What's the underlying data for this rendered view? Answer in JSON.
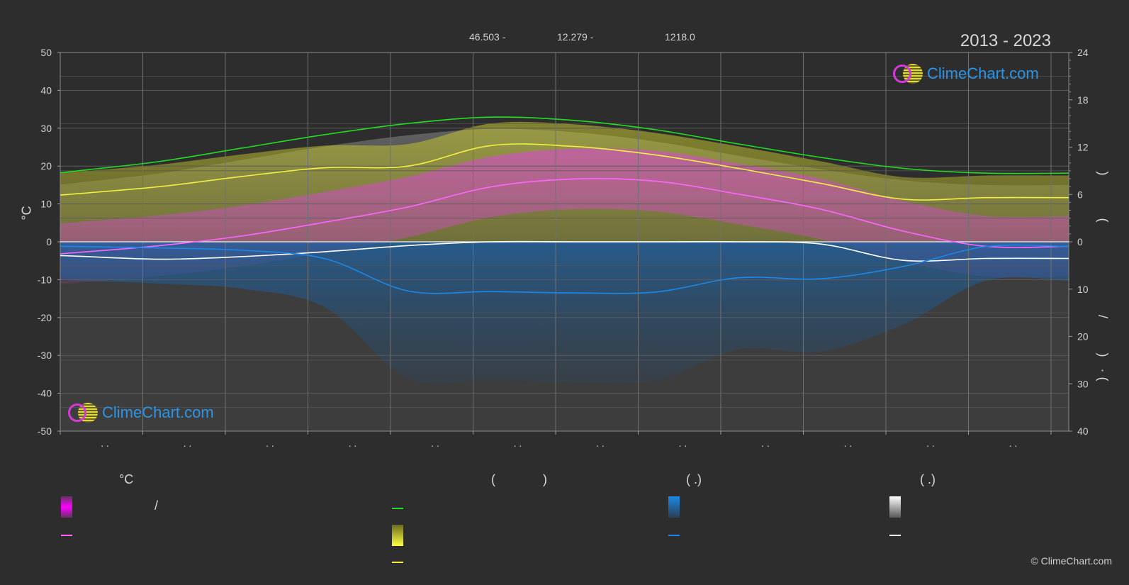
{
  "header": {
    "lat": "46.503 -",
    "lon": "12.279 -",
    "elev": "1218.0",
    "period": "2013 - 2023"
  },
  "brand": {
    "text": "ClimeChart.com"
  },
  "copyright": "© ClimeChart.com",
  "left_axis_label": "°C",
  "right_axis_glyphs": {
    "top_open": ")",
    "top_close": "(",
    "bottom_slash": "/",
    "bottom_open": ")",
    "bottom_dot": "·",
    "bottom_close": "("
  },
  "month_tick_labels": [
    ". .",
    ". .",
    ". .",
    ". .",
    ". .",
    ". .",
    ". .",
    ". .",
    ". .",
    ". .",
    ". .",
    ". ."
  ],
  "legend": {
    "col1_head": "°C",
    "col1_slash": "/",
    "col2_head_open": "(",
    "col2_head_close": ")",
    "col3_head": "(   .)",
    "col4_head": "(   .)"
  },
  "colors": {
    "background": "#2d2d2d",
    "grid": "#5a5a5a",
    "daylight": "#22dd22",
    "sunshine": "#f0f040",
    "temp_mean": "#ff66ff",
    "temp_min": "#ffffff",
    "precip": "#1a88e8",
    "temp_band": "#e040e0",
    "sun_band": "#c8c830",
    "snow": "#ffffff",
    "brand": "#2a95e8"
  },
  "chart_data": {
    "type": "line",
    "title": "",
    "x_months": [
      1,
      2,
      3,
      4,
      5,
      6,
      7,
      8,
      9,
      10,
      11,
      12
    ],
    "left_axis": {
      "label": "°C",
      "ylim": [
        -50,
        50
      ],
      "ticks": [
        50,
        40,
        30,
        20,
        10,
        0,
        -10,
        -20,
        -30,
        -40,
        -50
      ]
    },
    "right_axis_top": {
      "label": "",
      "ylim": [
        0,
        24
      ],
      "ticks": [
        24,
        18,
        12,
        6,
        0
      ]
    },
    "right_axis_bottom": {
      "label": "",
      "ylim": [
        0,
        40
      ],
      "ticks": [
        10,
        20,
        30,
        40
      ]
    },
    "series": [
      {
        "name": "",
        "key": "daylight",
        "axis": "right_top",
        "values": [
          9.0,
          10.2,
          11.9,
          13.6,
          15.0,
          15.8,
          15.4,
          14.2,
          12.4,
          10.7,
          9.3,
          8.7
        ]
      },
      {
        "name": "",
        "key": "sunshine",
        "axis": "right_top",
        "values": [
          6.1,
          7.0,
          8.3,
          9.4,
          9.6,
          12.2,
          12.1,
          11.0,
          9.3,
          7.4,
          5.4,
          5.6
        ]
      },
      {
        "name": "",
        "key": "temp_mean",
        "axis": "left",
        "values": [
          -2.8,
          -1.0,
          1.6,
          5.2,
          9.2,
          14.5,
          16.6,
          16.0,
          12.6,
          8.6,
          2.8,
          -1.2
        ]
      },
      {
        "name": "",
        "key": "temp_min",
        "axis": "left",
        "values": [
          -3.8,
          -4.6,
          -3.9,
          -2.6,
          -1.0,
          0.0,
          0.0,
          0.0,
          0.0,
          -0.6,
          -4.9,
          -4.4
        ]
      },
      {
        "name": "",
        "key": "precip",
        "axis": "right_bottom",
        "values": [
          1.0,
          1.3,
          1.8,
          3.6,
          10.4,
          10.5,
          10.8,
          10.6,
          7.6,
          7.8,
          5.2,
          1.0
        ]
      }
    ]
  }
}
